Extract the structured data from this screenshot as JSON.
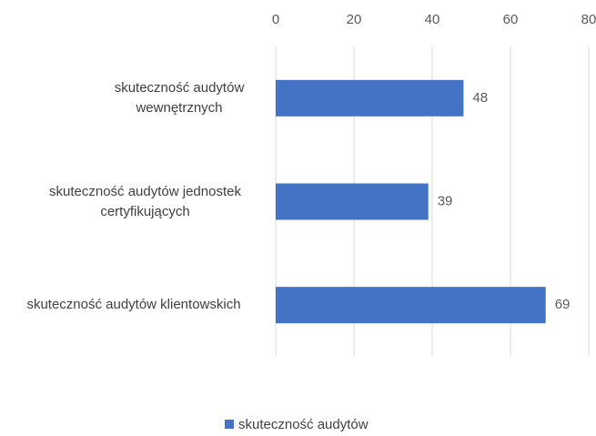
{
  "chart_data": {
    "type": "bar",
    "orientation": "horizontal",
    "categories": [
      "skuteczność audytów wewnętrznych",
      "skuteczność audytów jednostek certyfikujących",
      "skuteczność audytów klientowskich"
    ],
    "series": [
      {
        "name": "skuteczność audytów",
        "color": "#4472c4",
        "values": [
          48,
          39,
          69
        ]
      }
    ],
    "xlim": [
      0,
      80
    ],
    "xticks": [
      0,
      20,
      40,
      60,
      80
    ],
    "grid": true,
    "legend": "bottom"
  }
}
